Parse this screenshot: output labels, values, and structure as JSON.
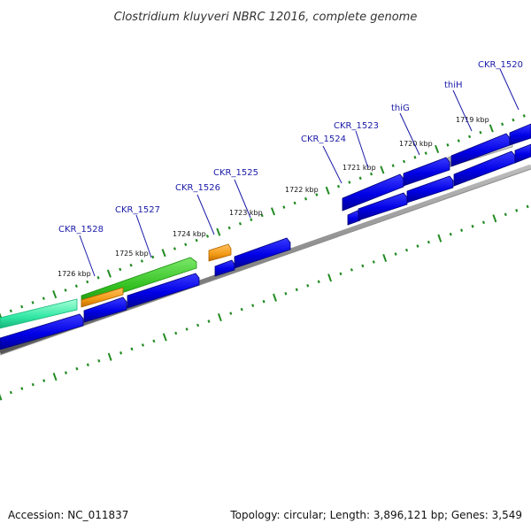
{
  "title": "Clostridium kluyveri NBRC 12016, complete genome",
  "accession": "Accession: NC_011837",
  "summary": "Topology: circular; Length: 3,896,121 bp; Genes: 3,549",
  "kbp_labels": [
    "1726 kbp",
    "1725 kbp",
    "1724 kbp",
    "1723 kbp",
    "1722 kbp",
    "1721 kbp",
    "1720 kbp",
    "1719 kbp"
  ],
  "gene_labels": [
    "CKR_1528",
    "CKR_1527",
    "CKR_1526",
    "CKR_1525",
    "CKR_1524",
    "CKR_1523",
    "thiG",
    "thiH",
    "CKR_1520"
  ],
  "colors": {
    "gene": "#0000e6",
    "gene_label": "#1a1aa8",
    "backbone": "#777777",
    "tick": "#228b22",
    "gc_skew": "#2fc51d",
    "orange": "#f39a14",
    "teal": "#33e8a5",
    "gray": "#bdbdbd"
  }
}
